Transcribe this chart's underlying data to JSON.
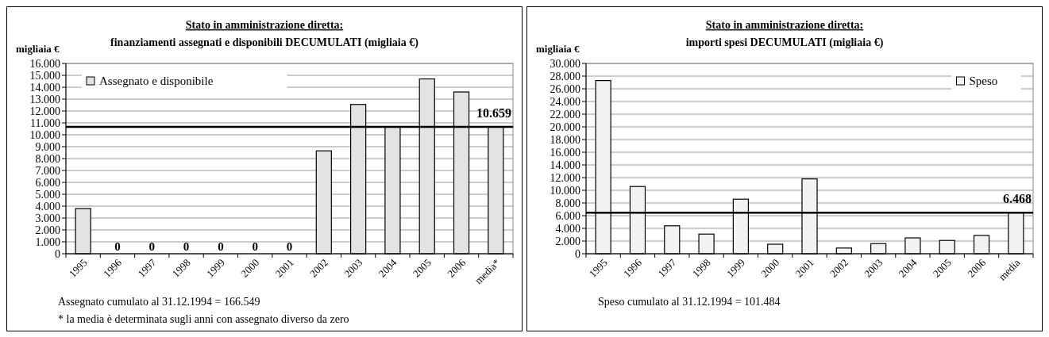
{
  "chart_data": [
    {
      "type": "bar",
      "title": "Stato in amministrazione diretta:",
      "subtitle": "finanziamenti assegnati e disponibili DECUMULATI (migliaia €)",
      "ylabel": "migliaia €",
      "categories": [
        "1995",
        "1996",
        "1997",
        "1998",
        "1999",
        "2000",
        "2001",
        "2002",
        "2003",
        "2004",
        "2005",
        "2006",
        "media*"
      ],
      "series": [
        {
          "name": "Assegnato e disponibile",
          "color": "#e3e3e3",
          "values": [
            3800,
            0,
            0,
            0,
            0,
            0,
            0,
            8650,
            12550,
            10650,
            14700,
            13600,
            10659
          ],
          "value_labels": [
            null,
            "0",
            "0",
            "0",
            "0",
            "0",
            "0",
            null,
            null,
            null,
            null,
            null,
            null
          ]
        }
      ],
      "ylim": [
        0,
        16000
      ],
      "yticks": [
        0,
        {
          "value": 1000,
          "label": "1.000"
        },
        {
          "value": 2000,
          "label": "2.000"
        },
        {
          "value": 3000,
          "label": "3.000"
        },
        {
          "value": 4000,
          "label": "4.000"
        },
        {
          "value": 5000,
          "label": "5.000"
        },
        {
          "value": 6000,
          "label": "6.000"
        },
        {
          "value": 7000,
          "label": "7.000"
        },
        {
          "value": 8000,
          "label": "8.000"
        },
        {
          "value": 9000,
          "label": "9.000"
        },
        {
          "value": 10000,
          "label": "10.000"
        },
        {
          "value": 11000,
          "label": "11.000"
        },
        {
          "value": 12000,
          "label": "12.000"
        },
        {
          "value": 13000,
          "label": "13.000"
        },
        {
          "value": 14000,
          "label": "14.000"
        },
        {
          "value": 15000,
          "label": "15.000"
        },
        {
          "value": 16000,
          "label": "16.000"
        }
      ],
      "grid": "y",
      "legend": "top left",
      "ref_lines": [
        {
          "axis": "y",
          "value": 10659,
          "label": "10.659",
          "color": "#000000"
        }
      ],
      "annotations": [
        "Assegnato cumulato al 31.12.1994 = 166.549",
        "* la media è determinata sugli anni con assegnato diverso da zero"
      ]
    },
    {
      "type": "bar",
      "title": "Stato in amministrazione diretta:",
      "subtitle": "importi spesi DECUMULATI (migliaia €)",
      "ylabel": "migliaia €",
      "categories": [
        "1995",
        "1996",
        "1997",
        "1998",
        "1999",
        "2000",
        "2001",
        "2002",
        "2003",
        "2004",
        "2005",
        "2006",
        "media"
      ],
      "series": [
        {
          "name": "Speso",
          "color": "#f2f2f2",
          "values": [
            27300,
            10600,
            4400,
            3100,
            8600,
            1500,
            11800,
            900,
            1600,
            2500,
            2100,
            2900,
            6468
          ]
        }
      ],
      "ylim": [
        0,
        30000
      ],
      "yticks": [
        0,
        {
          "value": 2000,
          "label": "2.000"
        },
        {
          "value": 4000,
          "label": "4.000"
        },
        {
          "value": 6000,
          "label": "6.000"
        },
        {
          "value": 8000,
          "label": "8.000"
        },
        {
          "value": 10000,
          "label": "10.000"
        },
        {
          "value": 12000,
          "label": "12.000"
        },
        {
          "value": 14000,
          "label": "14.000"
        },
        {
          "value": 16000,
          "label": "16.000"
        },
        {
          "value": 18000,
          "label": "18.000"
        },
        {
          "value": 20000,
          "label": "20.000"
        },
        {
          "value": 22000,
          "label": "22.000"
        },
        {
          "value": 24000,
          "label": "24.000"
        },
        {
          "value": 26000,
          "label": "26.000"
        },
        {
          "value": 28000,
          "label": "28.000"
        },
        {
          "value": 30000,
          "label": "30.000"
        }
      ],
      "grid": "y",
      "legend": "top right",
      "ref_lines": [
        {
          "axis": "y",
          "value": 6468,
          "label": "6.468",
          "color": "#000000"
        }
      ],
      "annotations": [
        "Speso cumulato al 31.12.1994 = 101.484"
      ]
    }
  ]
}
